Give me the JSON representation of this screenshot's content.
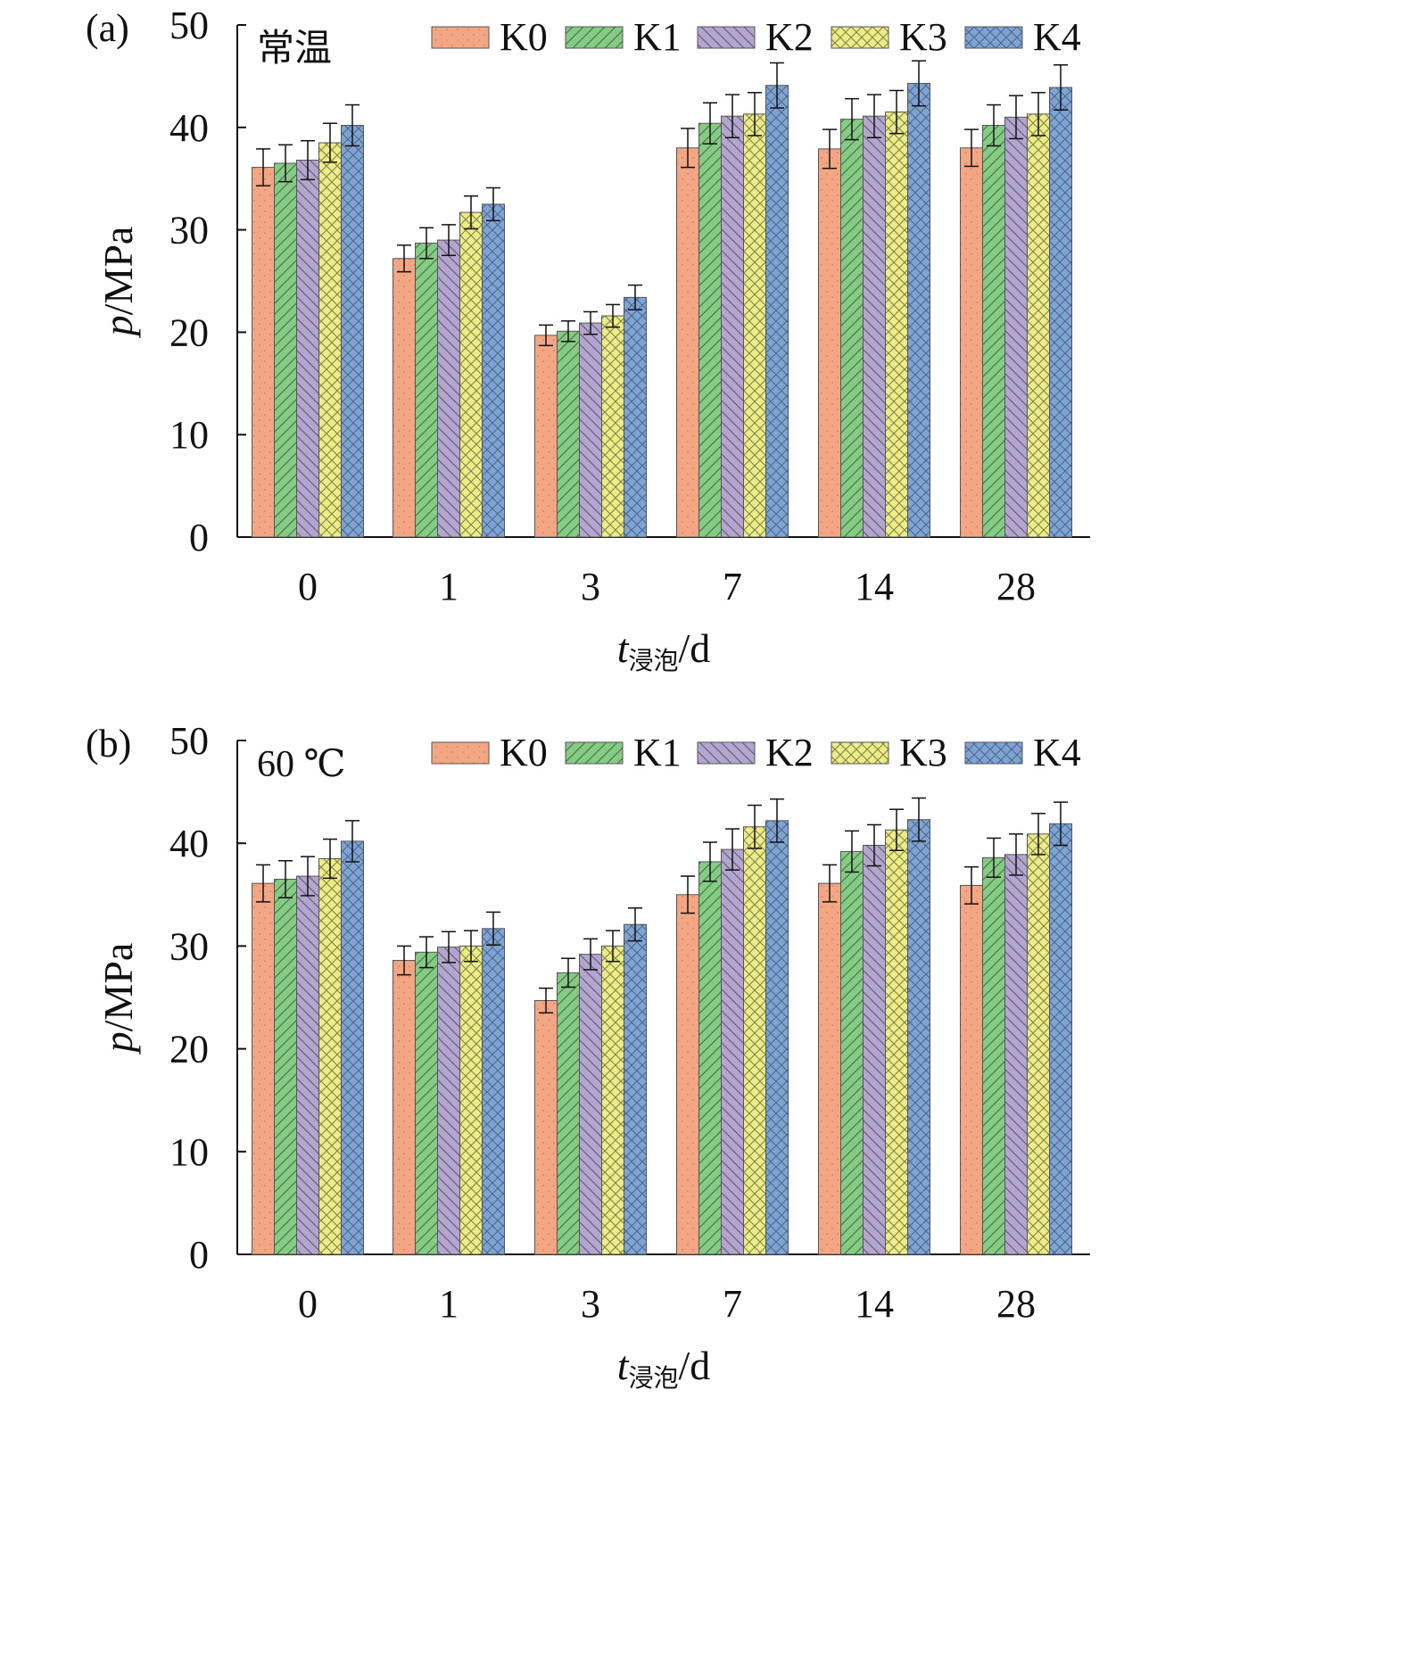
{
  "figure": {
    "x_axis_title": {
      "var": "t",
      "sub": "浸泡",
      "unit": "/d"
    },
    "y_axis_title": {
      "var": "p",
      "unit": "/MPa"
    }
  },
  "legend_items": [
    {
      "label": "K0",
      "color": "#f2a684",
      "pattern": "dots"
    },
    {
      "label": "K1",
      "color": "#84cc84",
      "pattern": "diag-up"
    },
    {
      "label": "K2",
      "color": "#b4a4d0",
      "pattern": "diag-down"
    },
    {
      "label": "K3",
      "color": "#eced84",
      "pattern": "crosshatch"
    },
    {
      "label": "K4",
      "color": "#7ea4d4",
      "pattern": "weave"
    }
  ],
  "chart_data": [
    {
      "type": "bar",
      "panel_label": "(a)",
      "condition_label": "常温",
      "categories": [
        "0",
        "1",
        "3",
        "7",
        "14",
        "28"
      ],
      "xlabel": "t浸泡/d",
      "ylabel": "p/MPa",
      "ylim": [
        0,
        50
      ],
      "yticks": [
        0,
        10,
        20,
        30,
        40,
        50
      ],
      "legend_position": "top-right",
      "series": [
        {
          "name": "K0",
          "values": [
            36.1,
            27.2,
            19.7,
            38.0,
            37.9,
            38.0
          ],
          "errors": [
            1.8,
            1.3,
            1.0,
            1.9,
            1.9,
            1.8
          ]
        },
        {
          "name": "K1",
          "values": [
            36.5,
            28.7,
            20.1,
            40.4,
            40.8,
            40.2
          ],
          "errors": [
            1.8,
            1.5,
            1.0,
            2.0,
            2.0,
            2.0
          ]
        },
        {
          "name": "K2",
          "values": [
            36.8,
            29.0,
            20.9,
            41.1,
            41.1,
            41.0
          ],
          "errors": [
            1.9,
            1.5,
            1.1,
            2.1,
            2.1,
            2.1
          ]
        },
        {
          "name": "K3",
          "values": [
            38.5,
            31.7,
            21.6,
            41.3,
            41.5,
            41.3
          ],
          "errors": [
            1.9,
            1.6,
            1.1,
            2.1,
            2.1,
            2.1
          ]
        },
        {
          "name": "K4",
          "values": [
            40.2,
            32.5,
            23.4,
            44.1,
            44.3,
            43.9
          ],
          "errors": [
            2.0,
            1.6,
            1.2,
            2.2,
            2.2,
            2.2
          ]
        }
      ]
    },
    {
      "type": "bar",
      "panel_label": "(b)",
      "condition_label": "60 ℃",
      "categories": [
        "0",
        "1",
        "3",
        "7",
        "14",
        "28"
      ],
      "xlabel": "t浸泡/d",
      "ylabel": "p/MPa",
      "ylim": [
        0,
        50
      ],
      "yticks": [
        0,
        10,
        20,
        30,
        40,
        50
      ],
      "legend_position": "top-right",
      "series": [
        {
          "name": "K0",
          "values": [
            36.1,
            28.6,
            24.7,
            35.0,
            36.1,
            35.9
          ],
          "errors": [
            1.8,
            1.4,
            1.2,
            1.8,
            1.8,
            1.8
          ]
        },
        {
          "name": "K1",
          "values": [
            36.5,
            29.4,
            27.4,
            38.2,
            39.2,
            38.6
          ],
          "errors": [
            1.8,
            1.5,
            1.4,
            1.9,
            2.0,
            1.9
          ]
        },
        {
          "name": "K2",
          "values": [
            36.8,
            29.9,
            29.2,
            39.4,
            39.8,
            38.9
          ],
          "errors": [
            1.9,
            1.5,
            1.5,
            2.0,
            2.0,
            2.0
          ]
        },
        {
          "name": "K3",
          "values": [
            38.5,
            30.0,
            30.0,
            41.6,
            41.3,
            40.9
          ],
          "errors": [
            1.9,
            1.5,
            1.5,
            2.1,
            2.0,
            2.0
          ]
        },
        {
          "name": "K4",
          "values": [
            40.2,
            31.7,
            32.1,
            42.2,
            42.3,
            41.9
          ],
          "errors": [
            2.0,
            1.6,
            1.6,
            2.1,
            2.1,
            2.1
          ]
        }
      ]
    }
  ]
}
